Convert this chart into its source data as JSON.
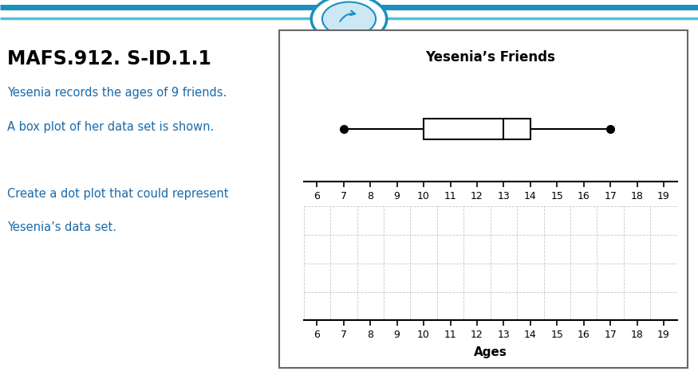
{
  "title_left": "MAFS.912. S-ID.1.1",
  "text_line1": "Yesenia records the ages of 9 friends.",
  "text_line2": "A box plot of her data set is shown.",
  "text_line3": "Create a dot plot that could represent",
  "text_line4": "Yesenia’s data set.",
  "boxplot_title": "Yesenia’s Friends",
  "bp_min": 7,
  "bp_q1": 10,
  "bp_median": 13,
  "bp_q3": 14,
  "bp_max": 17,
  "axis_min": 6,
  "axis_max": 19,
  "dot_plot_xlabel": "Ages",
  "dot_plot_rows": 4,
  "header_color_dark": "#1a8fc0",
  "header_color_light": "#4dc0e0",
  "text_color_title": "#000000",
  "text_color_body": "#1a6aaa",
  "background_color": "#ffffff",
  "dotgrid_color": "#c8c8c8"
}
